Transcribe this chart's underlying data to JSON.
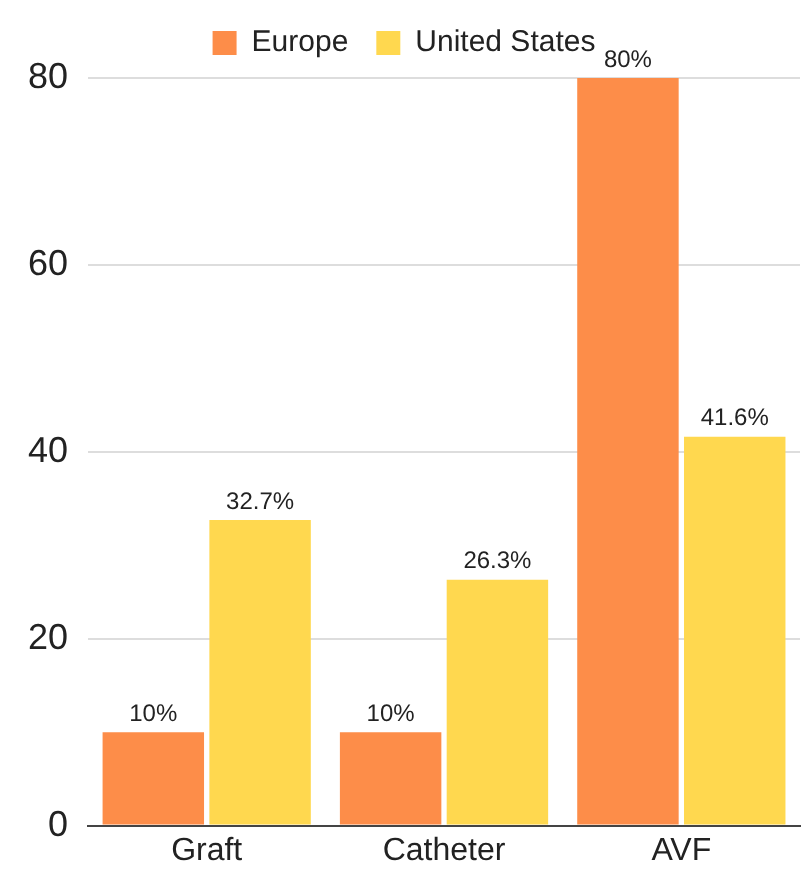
{
  "chart_data": {
    "type": "bar",
    "categories": [
      "Graft",
      "Catheter",
      "AVF"
    ],
    "series": [
      {
        "name": "Europe",
        "color": "#fd8d49",
        "values": [
          10,
          10,
          80
        ],
        "value_labels": [
          "10%",
          "10%",
          "80%"
        ]
      },
      {
        "name": "United States",
        "color": "#ffd84f",
        "values": [
          32.7,
          26.3,
          41.6
        ],
        "value_labels": [
          "32.7%",
          "26.3%",
          "41.6%"
        ]
      }
    ],
    "ylim": [
      0,
      80
    ],
    "yticks": [
      0,
      20,
      40,
      60,
      80
    ],
    "grid": "y",
    "legend": "top"
  }
}
